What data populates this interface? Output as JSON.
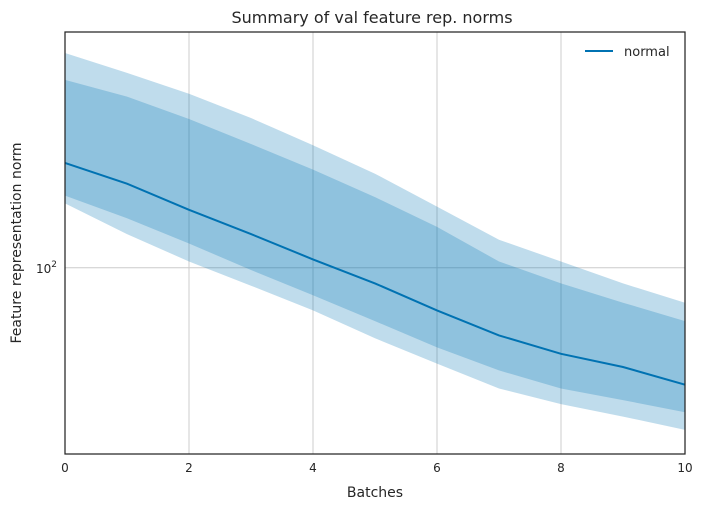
{
  "chart_data": {
    "type": "line",
    "title": "Summary of val feature rep. norms",
    "xlabel": "Batches",
    "ylabel": "Feature representation norm",
    "x": [
      0,
      1,
      2,
      3,
      4,
      5,
      6,
      7,
      8,
      9,
      10
    ],
    "xlim": [
      0,
      10
    ],
    "xticks": [
      "0",
      "2",
      "4",
      "6",
      "8",
      "10"
    ],
    "yscale": "log",
    "ylim": [
      42,
      300
    ],
    "yticks": [
      {
        "value": 100,
        "base": "10",
        "exp": "2"
      }
    ],
    "grid": true,
    "legend": {
      "position": "top-right",
      "entries": [
        "normal"
      ]
    },
    "series": [
      {
        "name": "normal",
        "color": "#0072b2",
        "values": [
          163,
          148,
          131,
          117,
          104,
          93,
          82,
          73,
          67,
          63,
          58
        ],
        "band_inner": {
          "lower": [
            140,
            126,
            112,
            99,
            88,
            78,
            69,
            62,
            57,
            54,
            51
          ],
          "upper": [
            240,
            222,
            200,
            178,
            158,
            139,
            121,
            103,
            93,
            85,
            78
          ]
        },
        "band_outer": {
          "lower": [
            135,
            117,
            103,
            92,
            82,
            72,
            64,
            57,
            53,
            50,
            47
          ],
          "upper": [
            272,
            248,
            225,
            201,
            177,
            155,
            133,
            114,
            103,
            93,
            85
          ]
        }
      }
    ]
  }
}
